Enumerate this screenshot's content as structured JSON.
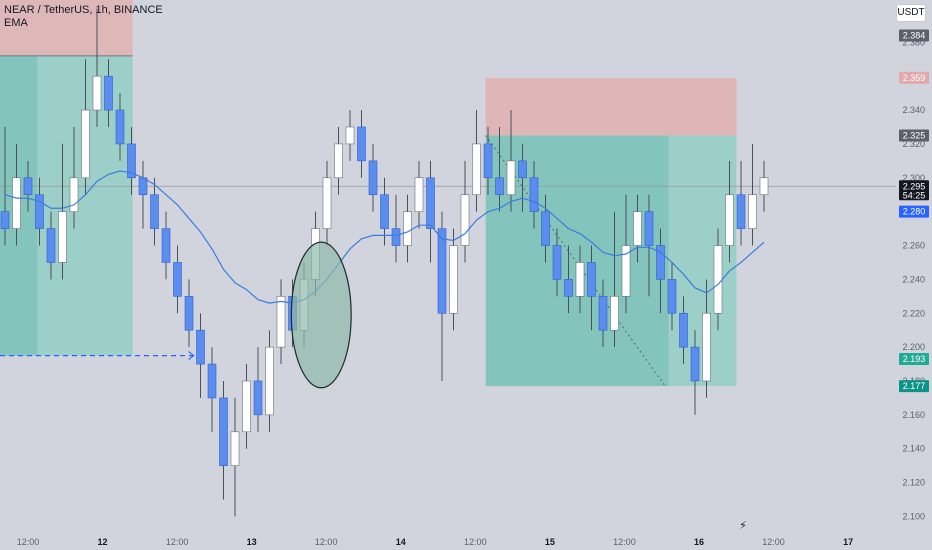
{
  "chart_data": {
    "type": "candlestick",
    "title": "NEAR / TetherUS, 1h, BINANCE",
    "indicator": "EMA",
    "currency": "USDT",
    "ylim": [
      2.092,
      2.405
    ],
    "y_ticks": [
      2.1,
      2.12,
      2.14,
      2.16,
      2.18,
      2.2,
      2.22,
      2.24,
      2.26,
      2.28,
      2.3,
      2.32,
      2.34,
      2.36,
      2.38
    ],
    "x_ticks": [
      {
        "label": "12:00",
        "bold": false,
        "pos": 0.03
      },
      {
        "label": "12",
        "bold": true,
        "pos": 0.11
      },
      {
        "label": "12:00",
        "bold": false,
        "pos": 0.19
      },
      {
        "label": "13",
        "bold": true,
        "pos": 0.27
      },
      {
        "label": "12:00",
        "bold": false,
        "pos": 0.35
      },
      {
        "label": "14",
        "bold": true,
        "pos": 0.43
      },
      {
        "label": "12:00",
        "bold": false,
        "pos": 0.51
      },
      {
        "label": "15",
        "bold": true,
        "pos": 0.59
      },
      {
        "label": "12:00",
        "bold": false,
        "pos": 0.67
      },
      {
        "label": "16",
        "bold": true,
        "pos": 0.75
      },
      {
        "label": "12:00",
        "bold": false,
        "pos": 0.83
      },
      {
        "label": "17",
        "bold": true,
        "pos": 0.91
      }
    ],
    "price_tags": [
      {
        "label": "2.384",
        "value": 2.384,
        "color": "#5d606b"
      },
      {
        "label": "2.359",
        "value": 2.359,
        "color": "#e0a9ae"
      },
      {
        "label": "2.325",
        "value": 2.325,
        "color": "#5d606b"
      },
      {
        "label": "2.295",
        "value": 2.295,
        "color": "#131722",
        "sub": "54:25"
      },
      {
        "label": "2.280",
        "value": 2.28,
        "color": "#2962ff"
      },
      {
        "label": "2.193",
        "value": 2.193,
        "color": "#22ab94"
      },
      {
        "label": "2.177",
        "value": 2.177,
        "color": "#0d9488"
      }
    ],
    "current_price": 2.295,
    "colors": {
      "up": "#ffffff",
      "down": "#5b8def",
      "wick": "#4a4f5c",
      "ema": "#3b7ddd",
      "profit": "#26a69a",
      "stop": "#ef5350"
    },
    "candles": [
      [
        2.28,
        2.27,
        2.33,
        2.26
      ],
      [
        2.27,
        2.3,
        2.32,
        2.26
      ],
      [
        2.3,
        2.29,
        2.31,
        2.28
      ],
      [
        2.29,
        2.27,
        2.3,
        2.26
      ],
      [
        2.27,
        2.25,
        2.28,
        2.24
      ],
      [
        2.25,
        2.28,
        2.32,
        2.24
      ],
      [
        2.28,
        2.3,
        2.33,
        2.27
      ],
      [
        2.3,
        2.34,
        2.37,
        2.29
      ],
      [
        2.34,
        2.36,
        2.4,
        2.33
      ],
      [
        2.36,
        2.34,
        2.37,
        2.33
      ],
      [
        2.34,
        2.32,
        2.35,
        2.31
      ],
      [
        2.32,
        2.3,
        2.33,
        2.29
      ],
      [
        2.3,
        2.29,
        2.31,
        2.27
      ],
      [
        2.29,
        2.27,
        2.3,
        2.26
      ],
      [
        2.27,
        2.25,
        2.28,
        2.24
      ],
      [
        2.25,
        2.23,
        2.26,
        2.22
      ],
      [
        2.23,
        2.21,
        2.24,
        2.2
      ],
      [
        2.21,
        2.19,
        2.22,
        2.17
      ],
      [
        2.19,
        2.17,
        2.2,
        2.15
      ],
      [
        2.17,
        2.13,
        2.18,
        2.11
      ],
      [
        2.13,
        2.15,
        2.17,
        2.1
      ],
      [
        2.15,
        2.18,
        2.19,
        2.14
      ],
      [
        2.18,
        2.16,
        2.2,
        2.15
      ],
      [
        2.16,
        2.2,
        2.21,
        2.15
      ],
      [
        2.2,
        2.23,
        2.24,
        2.19
      ],
      [
        2.23,
        2.21,
        2.24,
        2.2
      ],
      [
        2.21,
        2.24,
        2.25,
        2.2
      ],
      [
        2.24,
        2.27,
        2.28,
        2.23
      ],
      [
        2.27,
        2.3,
        2.31,
        2.26
      ],
      [
        2.3,
        2.32,
        2.33,
        2.29
      ],
      [
        2.32,
        2.33,
        2.34,
        2.31
      ],
      [
        2.33,
        2.31,
        2.34,
        2.3
      ],
      [
        2.31,
        2.29,
        2.32,
        2.28
      ],
      [
        2.29,
        2.27,
        2.3,
        2.26
      ],
      [
        2.27,
        2.26,
        2.29,
        2.25
      ],
      [
        2.26,
        2.28,
        2.29,
        2.25
      ],
      [
        2.28,
        2.3,
        2.31,
        2.27
      ],
      [
        2.3,
        2.27,
        2.31,
        2.25
      ],
      [
        2.27,
        2.22,
        2.28,
        2.18
      ],
      [
        2.22,
        2.26,
        2.27,
        2.21
      ],
      [
        2.26,
        2.29,
        2.31,
        2.25
      ],
      [
        2.29,
        2.32,
        2.34,
        2.28
      ],
      [
        2.32,
        2.3,
        2.33,
        2.29
      ],
      [
        2.3,
        2.29,
        2.33,
        2.28
      ],
      [
        2.29,
        2.31,
        2.34,
        2.28
      ],
      [
        2.31,
        2.3,
        2.32,
        2.28
      ],
      [
        2.3,
        2.28,
        2.31,
        2.27
      ],
      [
        2.28,
        2.26,
        2.29,
        2.25
      ],
      [
        2.26,
        2.24,
        2.27,
        2.23
      ],
      [
        2.24,
        2.23,
        2.26,
        2.22
      ],
      [
        2.23,
        2.25,
        2.26,
        2.22
      ],
      [
        2.25,
        2.23,
        2.26,
        2.21
      ],
      [
        2.23,
        2.21,
        2.24,
        2.2
      ],
      [
        2.21,
        2.23,
        2.28,
        2.2
      ],
      [
        2.23,
        2.26,
        2.29,
        2.22
      ],
      [
        2.26,
        2.28,
        2.29,
        2.25
      ],
      [
        2.28,
        2.26,
        2.29,
        2.23
      ],
      [
        2.26,
        2.24,
        2.27,
        2.22
      ],
      [
        2.24,
        2.22,
        2.25,
        2.21
      ],
      [
        2.22,
        2.2,
        2.23,
        2.19
      ],
      [
        2.2,
        2.18,
        2.21,
        2.16
      ],
      [
        2.18,
        2.22,
        2.24,
        2.17
      ],
      [
        2.22,
        2.26,
        2.27,
        2.21
      ],
      [
        2.26,
        2.29,
        2.31,
        2.25
      ],
      [
        2.29,
        2.27,
        2.31,
        2.26
      ],
      [
        2.27,
        2.29,
        2.32,
        2.26
      ],
      [
        2.29,
        2.3,
        2.31,
        2.28
      ]
    ],
    "ema": [
      2.29,
      2.288,
      2.288,
      2.286,
      2.282,
      2.282,
      2.284,
      2.29,
      2.298,
      2.302,
      2.304,
      2.303,
      2.3,
      2.296,
      2.29,
      2.284,
      2.276,
      2.268,
      2.258,
      2.246,
      2.238,
      2.234,
      2.228,
      2.226,
      2.227,
      2.226,
      2.228,
      2.233,
      2.24,
      2.249,
      2.258,
      2.264,
      2.266,
      2.266,
      2.266,
      2.268,
      2.272,
      2.272,
      2.264,
      2.263,
      2.267,
      2.275,
      2.28,
      2.282,
      2.286,
      2.288,
      2.286,
      2.282,
      2.276,
      2.27,
      2.267,
      2.262,
      2.256,
      2.254,
      2.255,
      2.259,
      2.259,
      2.256,
      2.25,
      2.243,
      2.235,
      2.232,
      2.237,
      2.245,
      2.25,
      2.256,
      2.262
    ],
    "ellipse_annotation": {
      "center_x_index": 27.5,
      "center_y": 2.219,
      "rx_candles": 2.6,
      "ry_price": 0.043
    }
  }
}
